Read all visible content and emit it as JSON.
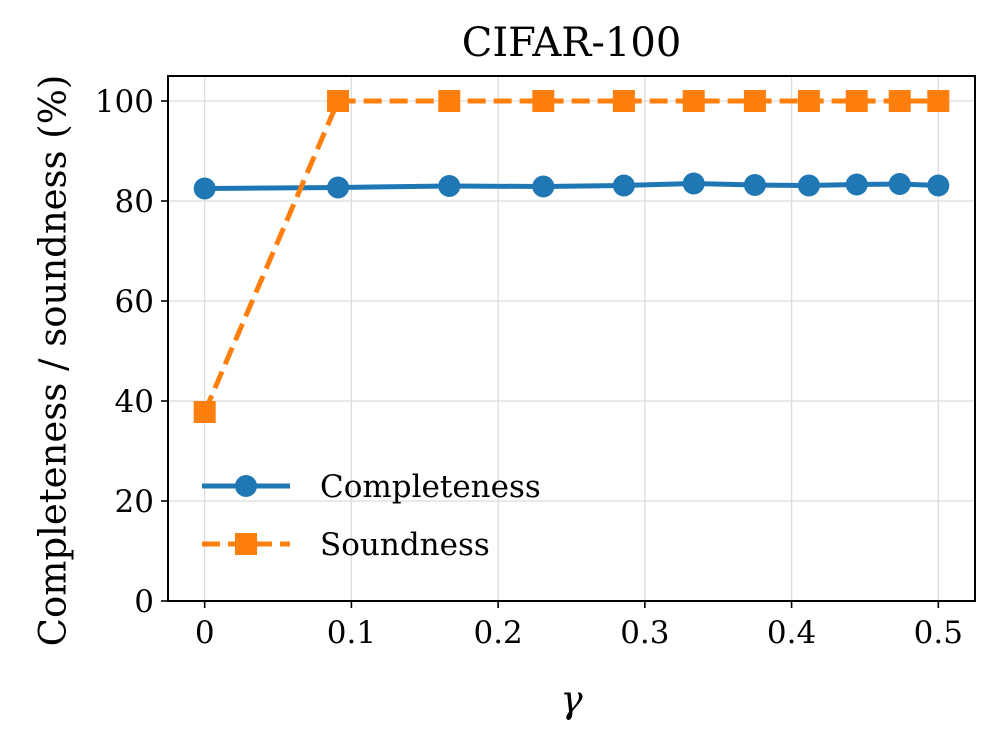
{
  "chart_data": {
    "type": "line",
    "title": "CIFAR-100",
    "xlabel": "γ",
    "ylabel": "Completeness / soundness (%)",
    "xlim": [
      -0.025,
      0.525
    ],
    "ylim": [
      0,
      105
    ],
    "grid": true,
    "legend_position": "lower-left",
    "x_ticks": [
      0,
      0.1,
      0.2,
      0.3,
      0.4,
      0.5
    ],
    "x_tick_labels": [
      "0",
      "0.1",
      "0.2",
      "0.3",
      "0.4",
      "0.5"
    ],
    "y_ticks": [
      0,
      20,
      40,
      60,
      80,
      100
    ],
    "y_tick_labels": [
      "0",
      "20",
      "40",
      "60",
      "80",
      "100"
    ],
    "series": [
      {
        "name": "Completeness",
        "color": "#1f77b4",
        "marker": "circle",
        "line_style": "solid",
        "x": [
          0,
          0.0909,
          0.1667,
          0.2308,
          0.2857,
          0.3333,
          0.375,
          0.4118,
          0.4444,
          0.4737,
          0.5
        ],
        "values": [
          82.5,
          82.7,
          83.0,
          82.9,
          83.1,
          83.5,
          83.2,
          83.1,
          83.3,
          83.4,
          83.1
        ]
      },
      {
        "name": "Soundness",
        "color": "#ff7f0e",
        "marker": "square",
        "line_style": "dashed",
        "x": [
          0,
          0.0909,
          0.1667,
          0.2308,
          0.2857,
          0.3333,
          0.375,
          0.4118,
          0.4444,
          0.4737,
          0.5
        ],
        "values": [
          37.8,
          100,
          100,
          100,
          100,
          100,
          100,
          100,
          100,
          100,
          100
        ]
      }
    ]
  }
}
